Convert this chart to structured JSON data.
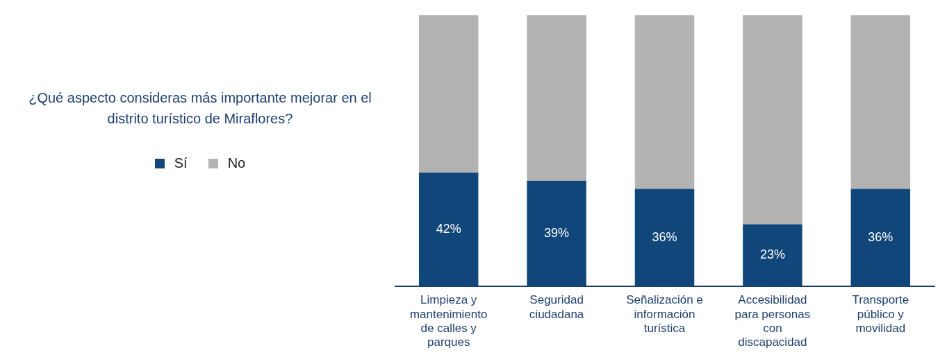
{
  "chart_data": {
    "type": "bar",
    "title": "¿Qué aspecto consideras más importante mejorar en el distrito turístico de Miraflores?",
    "categories": [
      "Limpieza y mantenimiento de calles y parques",
      "Seguridad ciudadana",
      "Señalización e información turística",
      "Accesibilidad para personas con discapacidad",
      "Transporte público y movilidad"
    ],
    "series": [
      {
        "name": "Sí",
        "color": "#11467a",
        "values": [
          42,
          39,
          36,
          23,
          36
        ],
        "value_labels": [
          "42%",
          "39%",
          "36%",
          "23%",
          "36%"
        ]
      },
      {
        "name": "No",
        "color": "#b3b3b3",
        "values": [
          58,
          61,
          64,
          77,
          64
        ]
      }
    ],
    "stacked": true,
    "ylim": [
      0,
      100
    ],
    "tick_labels": "x",
    "grid": false,
    "legend": "left"
  }
}
